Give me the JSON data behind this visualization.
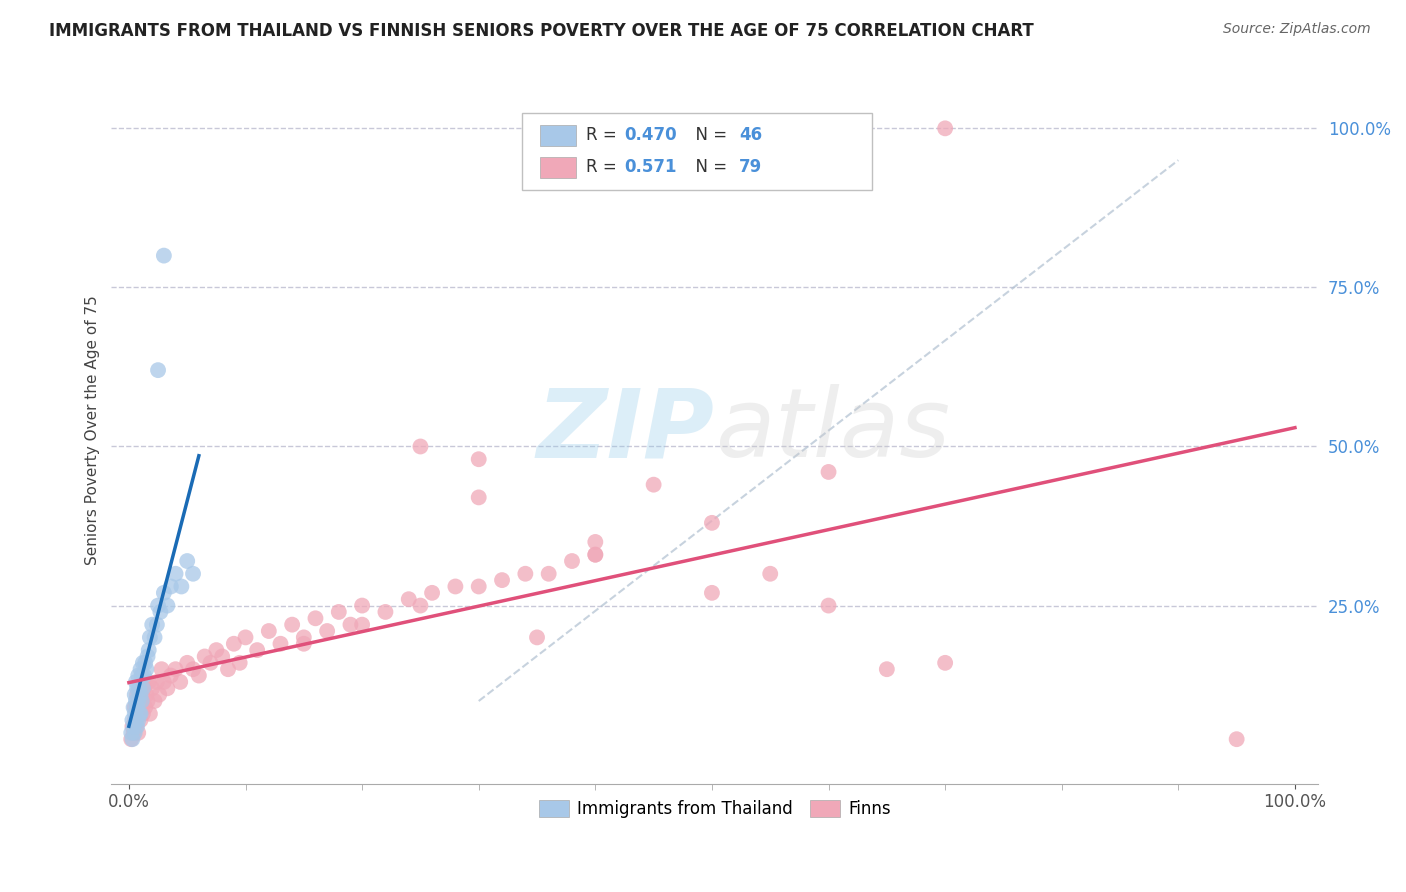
{
  "title": "IMMIGRANTS FROM THAILAND VS FINNISH SENIORS POVERTY OVER THE AGE OF 75 CORRELATION CHART",
  "source": "Source: ZipAtlas.com",
  "ylabel": "Seniors Poverty Over the Age of 75",
  "r_thailand": 0.47,
  "n_thailand": 46,
  "r_finns": 0.571,
  "n_finns": 79,
  "color_thailand": "#a8c8e8",
  "color_finns": "#f0a8b8",
  "line_color_thailand": "#1a6bb5",
  "line_color_finns": "#e0507a",
  "background_color": "#ffffff",
  "grid_color": "#c8c8d8",
  "watermark_zip_color": "#8ec8e8",
  "watermark_atlas_color": "#c8c8c8",
  "xlim": [
    0.0,
    1.0
  ],
  "ylim": [
    0.0,
    1.0
  ],
  "ytick_positions": [
    0.25,
    0.5,
    0.75,
    1.0
  ],
  "ytick_labels": [
    "25.0%",
    "50.0%",
    "75.0%",
    "100.0%"
  ]
}
